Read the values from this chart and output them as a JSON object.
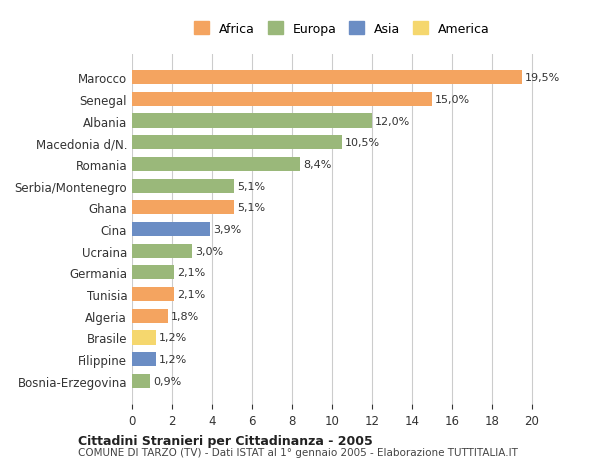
{
  "countries": [
    "Marocco",
    "Senegal",
    "Albania",
    "Macedonia d/N.",
    "Romania",
    "Serbia/Montenegro",
    "Ghana",
    "Cina",
    "Ucraina",
    "Germania",
    "Tunisia",
    "Algeria",
    "Brasile",
    "Filippine",
    "Bosnia-Erzegovina"
  ],
  "values": [
    19.5,
    15.0,
    12.0,
    10.5,
    8.4,
    5.1,
    5.1,
    3.9,
    3.0,
    2.1,
    2.1,
    1.8,
    1.2,
    1.2,
    0.9
  ],
  "labels": [
    "19,5%",
    "15,0%",
    "12,0%",
    "10,5%",
    "8,4%",
    "5,1%",
    "5,1%",
    "3,9%",
    "3,0%",
    "2,1%",
    "2,1%",
    "1,8%",
    "1,2%",
    "1,2%",
    "0,9%"
  ],
  "continents": [
    "Africa",
    "Africa",
    "Europa",
    "Europa",
    "Europa",
    "Europa",
    "Africa",
    "Asia",
    "Europa",
    "Europa",
    "Africa",
    "Africa",
    "America",
    "Asia",
    "Europa"
  ],
  "colors": {
    "Africa": "#F4A460",
    "Europa": "#9AB87A",
    "Asia": "#6B8DC4",
    "America": "#F5D76E"
  },
  "legend_order": [
    "Africa",
    "Europa",
    "Asia",
    "America"
  ],
  "legend_colors": {
    "Africa": "#F4A460",
    "Europa": "#9AB87A",
    "Asia": "#6B8DC4",
    "America": "#F5D76E"
  },
  "title": "Cittadini Stranieri per Cittadinanza - 2005",
  "subtitle": "COMUNE DI TARZO (TV) - Dati ISTAT al 1° gennaio 2005 - Elaborazione TUTTITALIA.IT",
  "xlabel": "",
  "xlim": [
    0,
    21
  ],
  "xticks": [
    0,
    2,
    4,
    6,
    8,
    10,
    12,
    14,
    16,
    18,
    20
  ],
  "bg_color": "#FFFFFF",
  "grid_color": "#CCCCCC",
  "bar_height": 0.65
}
